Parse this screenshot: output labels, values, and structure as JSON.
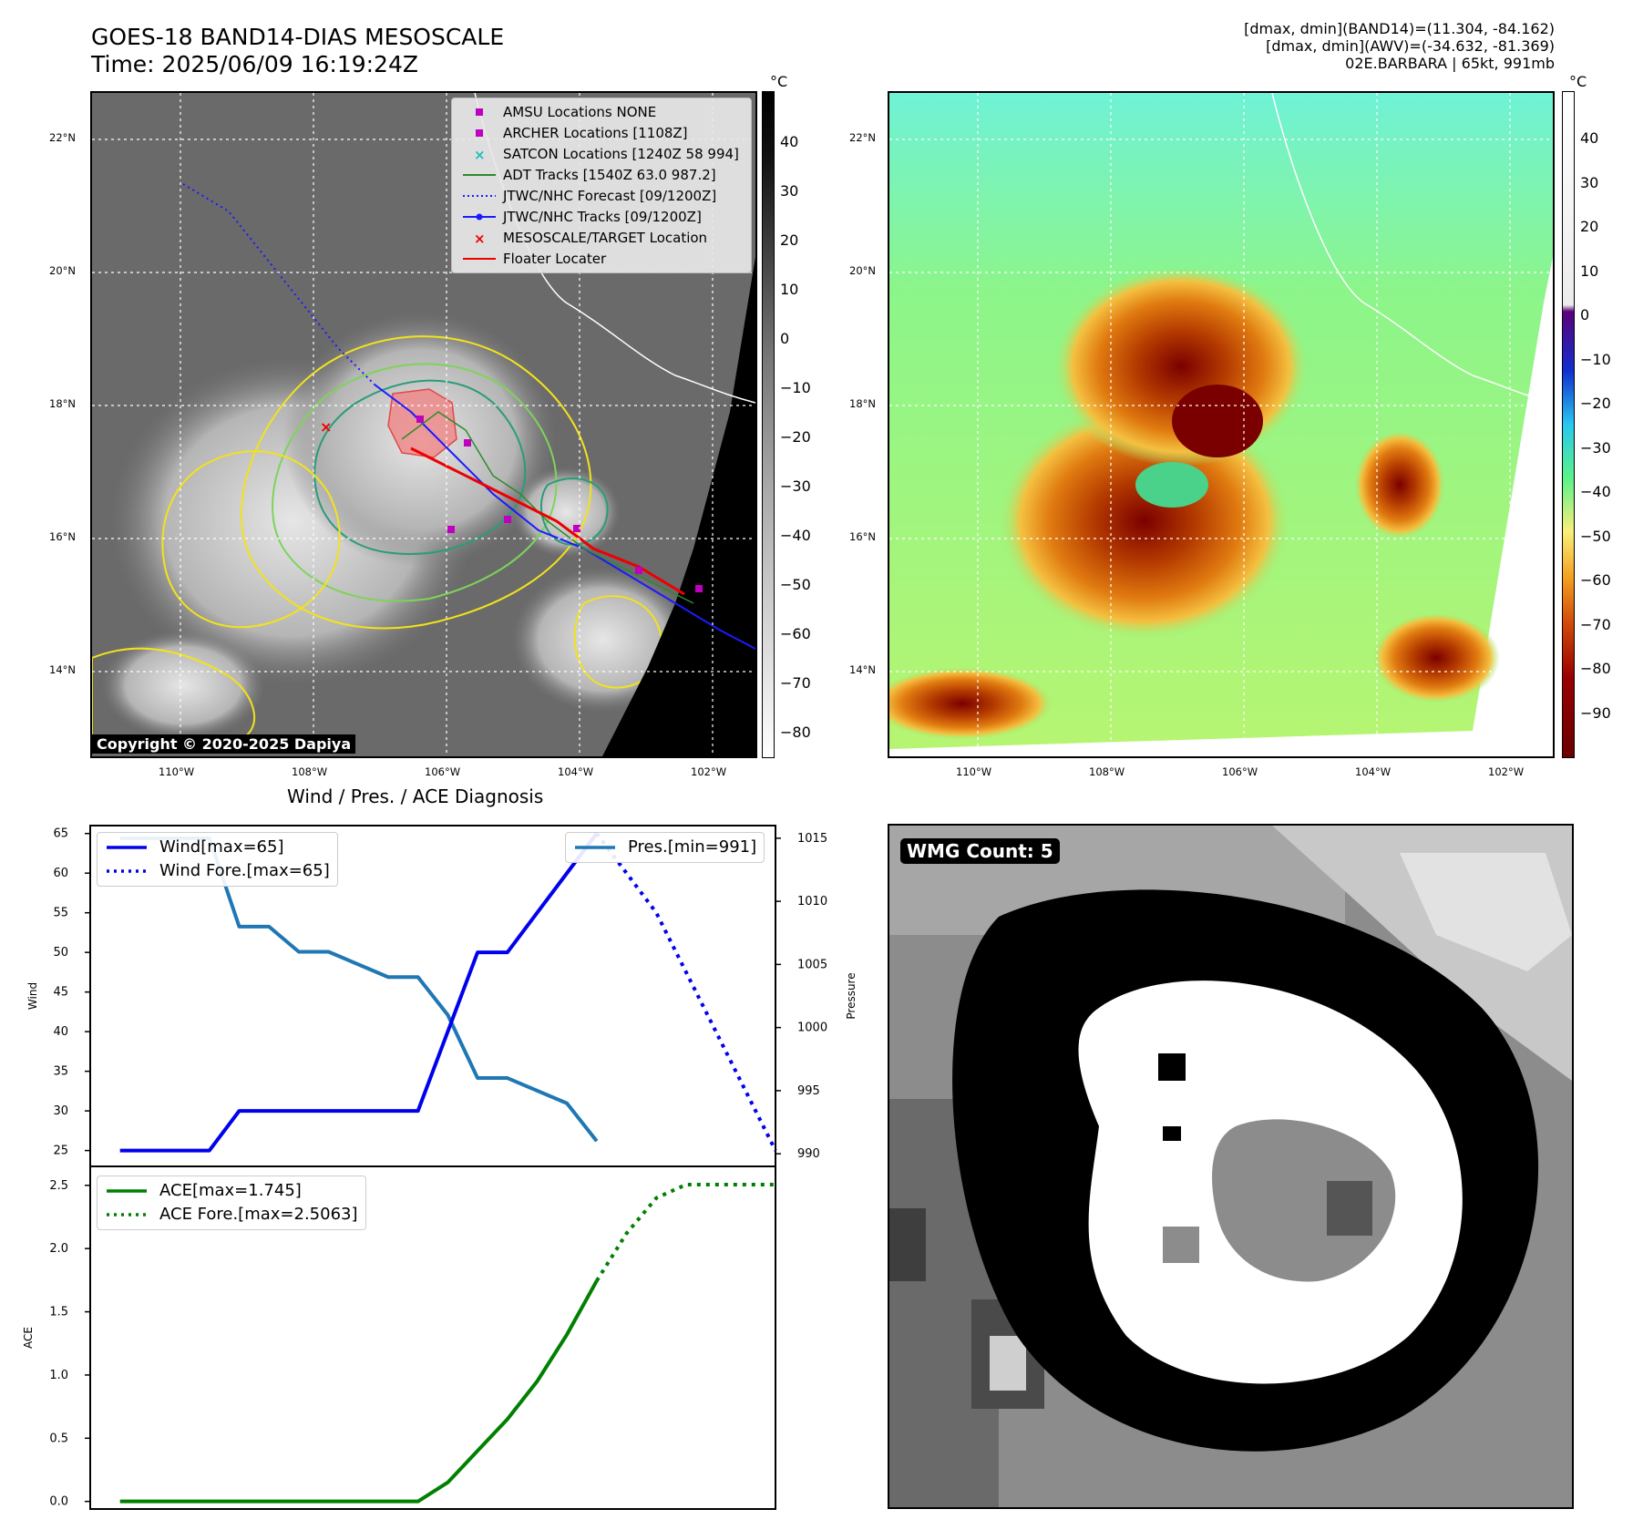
{
  "header": {
    "title_line1": "GOES-18 BAND14-DIAS MESOSCALE",
    "title_line2": "Time: 2025/06/09 16:19:24Z",
    "right_line1": "[dmax, dmin](BAND14)=(11.304, -84.162)",
    "right_line2": "[dmax, dmin](AWV)=(-34.632, -81.369)",
    "right_line3": "02E.BARBARA | 65kt, 991mb"
  },
  "maps": {
    "lat_labels": [
      "22°N",
      "20°N",
      "18°N",
      "16°N",
      "14°N"
    ],
    "lon_labels": [
      "110°W",
      "108°W",
      "106°W",
      "104°W",
      "102°W"
    ]
  },
  "colorbar_left": {
    "unit": "°C",
    "ticks": [
      "40",
      "30",
      "20",
      "10",
      "0",
      "−10",
      "−20",
      "−30",
      "−40",
      "−50",
      "−60",
      "−70",
      "−80"
    ],
    "colors": {
      "top": "#000000",
      "bottom": "#ffffff"
    }
  },
  "colorbar_right": {
    "unit": "°C",
    "ticks": [
      "40",
      "30",
      "20",
      "10",
      "0",
      "−10",
      "−20",
      "−30",
      "−40",
      "−50",
      "−60",
      "−70",
      "−80",
      "−90"
    ]
  },
  "map_legend": {
    "items": [
      {
        "label": "AMSU Locations NONE",
        "icon": "magenta-square"
      },
      {
        "label": "ARCHER Locations [1108Z]",
        "icon": "magenta-square"
      },
      {
        "label": "SATCON Locations [1240Z 58 994]",
        "icon": "cyan-x"
      },
      {
        "label": "ADT Tracks [1540Z 63.0 987.2]",
        "icon": "green-line"
      },
      {
        "label": "JTWC/NHC Forecast [09/1200Z]",
        "icon": "blue-dotted-line"
      },
      {
        "label": "JTWC/NHC Tracks [09/1200Z]",
        "icon": "blue-line-dot"
      },
      {
        "label": "MESOSCALE/TARGET Location",
        "icon": "red-x"
      },
      {
        "label": "Floater Locater",
        "icon": "red-line"
      }
    ]
  },
  "copyright": "Copyright © 2020-2025 Dapiya",
  "wmg": {
    "label": "WMG Count: 5"
  },
  "chart_data": [
    {
      "type": "line",
      "title": "Wind / Pres. / ACE Diagnosis",
      "ylabel": "Wind",
      "ylim": [
        23.0,
        66.0
      ],
      "yticks": [
        25,
        30,
        35,
        40,
        45,
        50,
        55,
        60,
        65
      ],
      "y2label": "Pressure",
      "y2lim": [
        989.0,
        1016.0
      ],
      "y2ticks": [
        990,
        995,
        1000,
        1005,
        1010,
        1015
      ],
      "xlim": [
        -1,
        22
      ],
      "series": [
        {
          "name": "Wind[max=65]",
          "axis": "left",
          "color": "#0000ee",
          "style": "solid",
          "x": [
            0,
            3,
            4,
            10,
            12,
            13,
            16
          ],
          "y": [
            25,
            25,
            30,
            30,
            50,
            50,
            65
          ]
        },
        {
          "name": "Wind Fore.[max=65]",
          "axis": "left",
          "color": "#0000ee",
          "style": "dotted",
          "x": [
            16,
            18,
            20,
            22
          ],
          "y": [
            65,
            55,
            40,
            25
          ]
        },
        {
          "name": "Pres.[min=991]",
          "axis": "right",
          "color": "#1f77b4",
          "style": "solid",
          "x": [
            0,
            3,
            4,
            5,
            6,
            7,
            9,
            10,
            11,
            12,
            13,
            15,
            16
          ],
          "y": [
            1015,
            1015,
            1008,
            1008,
            1006,
            1006,
            1004,
            1004,
            1001,
            996,
            996,
            994,
            991
          ]
        }
      ]
    },
    {
      "type": "line",
      "ylabel": "ACE",
      "ylim": [
        -0.06,
        2.65
      ],
      "yticks": [
        0.0,
        0.5,
        1.0,
        1.5,
        2.0,
        2.5
      ],
      "xlim": [
        -1,
        22
      ],
      "series": [
        {
          "name": "ACE[max=1.745]",
          "color": "#008000",
          "style": "solid",
          "x": [
            0,
            1,
            2,
            3,
            4,
            5,
            6,
            7,
            8,
            9,
            10,
            11,
            12,
            13,
            14,
            15,
            16
          ],
          "y": [
            0,
            0,
            0,
            0,
            0,
            0,
            0,
            0,
            0,
            0,
            0,
            0.15,
            0.4,
            0.65,
            0.95,
            1.32,
            1.745
          ]
        },
        {
          "name": "ACE Fore.[max=2.5063]",
          "color": "#008000",
          "style": "dotted",
          "x": [
            16,
            17,
            18,
            19,
            20,
            21,
            22
          ],
          "y": [
            1.745,
            2.12,
            2.4,
            2.5063,
            2.5063,
            2.5063,
            2.5063
          ]
        }
      ]
    }
  ]
}
